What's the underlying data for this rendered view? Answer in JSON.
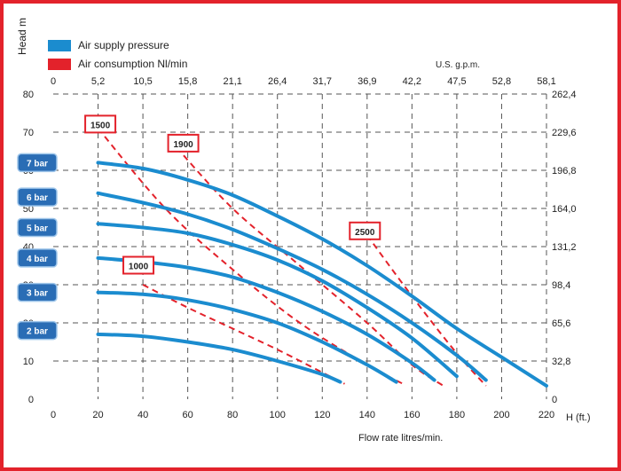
{
  "legend": [
    {
      "label": "Air supply pressure",
      "color": "#1b8ccf"
    },
    {
      "label": "Air consumption Nl/min",
      "color": "#e3222b"
    }
  ],
  "chart_data": {
    "type": "line",
    "ylabel": "Head m",
    "xlabel": "Flow rate litres/min.",
    "xunit": "H (ft.)",
    "top_axis_title": "U.S. g.p.m.",
    "xlim": [
      0,
      220
    ],
    "ylim": [
      0,
      80
    ],
    "x_ticks": [
      0,
      20,
      40,
      60,
      80,
      100,
      120,
      140,
      160,
      180,
      200,
      220
    ],
    "y_ticks": [
      0,
      10,
      20,
      30,
      40,
      50,
      60,
      70,
      80
    ],
    "top_ticks": [
      "0",
      "5,2",
      "10,5",
      "15,8",
      "21,1",
      "26,4",
      "31,7",
      "36,9",
      "42,2",
      "47,5",
      "52,8",
      "58,1"
    ],
    "right_ticks": [
      "0",
      "32,8",
      "65,6",
      "98,4",
      "131,2",
      "164,0",
      "196,8",
      "229,6",
      "262,4"
    ],
    "grid": true,
    "pressure_series": [
      {
        "name": "7 bar",
        "x": [
          20,
          40,
          60,
          80,
          100,
          120,
          140,
          160,
          180,
          200,
          220
        ],
        "y": [
          62,
          60.5,
          57.5,
          53.5,
          48,
          42,
          35,
          27,
          18.5,
          11,
          3.5
        ]
      },
      {
        "name": "6 bar",
        "x": [
          20,
          40,
          60,
          80,
          100,
          120,
          140,
          160,
          180,
          193
        ],
        "y": [
          54,
          51.5,
          48.5,
          44.5,
          39.5,
          34,
          27.5,
          20,
          11.5,
          5
        ]
      },
      {
        "name": "5 bar",
        "x": [
          20,
          40,
          60,
          80,
          100,
          120,
          140,
          160,
          180
        ],
        "y": [
          46,
          45,
          43.5,
          40.5,
          36.5,
          31,
          24,
          16,
          6
        ]
      },
      {
        "name": "4 bar",
        "x": [
          20,
          40,
          60,
          80,
          100,
          120,
          140,
          160,
          170
        ],
        "y": [
          37,
          36,
          34.5,
          32,
          28,
          23,
          17,
          9.5,
          5
        ]
      },
      {
        "name": "3 bar",
        "x": [
          20,
          40,
          60,
          80,
          100,
          120,
          140,
          153
        ],
        "y": [
          28,
          27.5,
          26,
          23.5,
          20,
          15,
          9,
          4.5
        ]
      },
      {
        "name": "2 bar",
        "x": [
          20,
          40,
          60,
          80,
          100,
          120,
          128
        ],
        "y": [
          17,
          16.5,
          15,
          13,
          10,
          6.5,
          4.5
        ]
      }
    ],
    "consumption_series": [
      {
        "name": "1500",
        "x": [
          20,
          50,
          80,
          110,
          140,
          156
        ],
        "y": [
          71,
          50,
          34,
          20,
          9,
          4
        ]
      },
      {
        "name": "1900",
        "x": [
          55,
          80,
          110,
          140,
          160,
          174
        ],
        "y": [
          66,
          50,
          35,
          20,
          9,
          3.5
        ]
      },
      {
        "name": "2500",
        "x": [
          140,
          160,
          180,
          193
        ],
        "y": [
          43,
          27,
          12,
          3.5
        ]
      },
      {
        "name": "1000",
        "x": [
          40,
          60,
          80,
          100,
          120,
          130
        ],
        "y": [
          30,
          24,
          18.5,
          13,
          7,
          4
        ]
      }
    ],
    "pressure_labels": [
      {
        "text": "7 bar",
        "y": 62
      },
      {
        "text": "6 bar",
        "y": 53
      },
      {
        "text": "5 bar",
        "y": 45
      },
      {
        "text": "4 bar",
        "y": 37
      },
      {
        "text": "3 bar",
        "y": 28
      },
      {
        "text": "2 bar",
        "y": 18
      }
    ],
    "consumption_labels": [
      {
        "text": "1500",
        "x": 21,
        "y": 72
      },
      {
        "text": "1900",
        "x": 58,
        "y": 67
      },
      {
        "text": "2500",
        "x": 139,
        "y": 44
      },
      {
        "text": "1000",
        "x": 38,
        "y": 35
      }
    ],
    "colors": {
      "pressure": "#1b8ccf",
      "consumption": "#e3222b",
      "grid": "#555555",
      "label_bg": "#2a6db5"
    }
  }
}
